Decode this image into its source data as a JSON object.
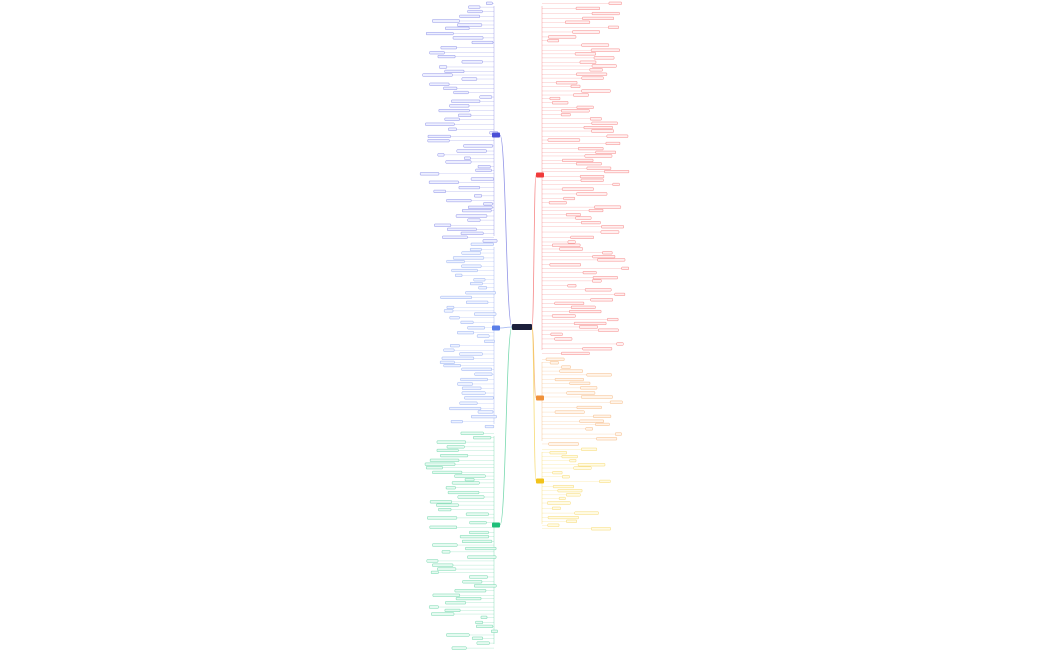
{
  "mindmap": {
    "center": {
      "color": "#1b1f3b"
    },
    "branches": [
      {
        "id": "blue-top",
        "side": "left",
        "color": "#4a4fd6",
        "fill": "#eef0ff"
      },
      {
        "id": "blue-mid",
        "side": "left",
        "color": "#5b7fe8",
        "fill": "#eef3ff"
      },
      {
        "id": "green",
        "side": "left",
        "color": "#1fbf7a",
        "fill": "#e6faf1"
      },
      {
        "id": "red",
        "side": "right",
        "color": "#f03a3a",
        "fill": "#fff0f0"
      },
      {
        "id": "orange",
        "side": "right",
        "color": "#f0913a",
        "fill": "#fff5eb"
      },
      {
        "id": "yellow",
        "side": "right",
        "color": "#f2c31c",
        "fill": "#fffbe6"
      }
    ]
  }
}
